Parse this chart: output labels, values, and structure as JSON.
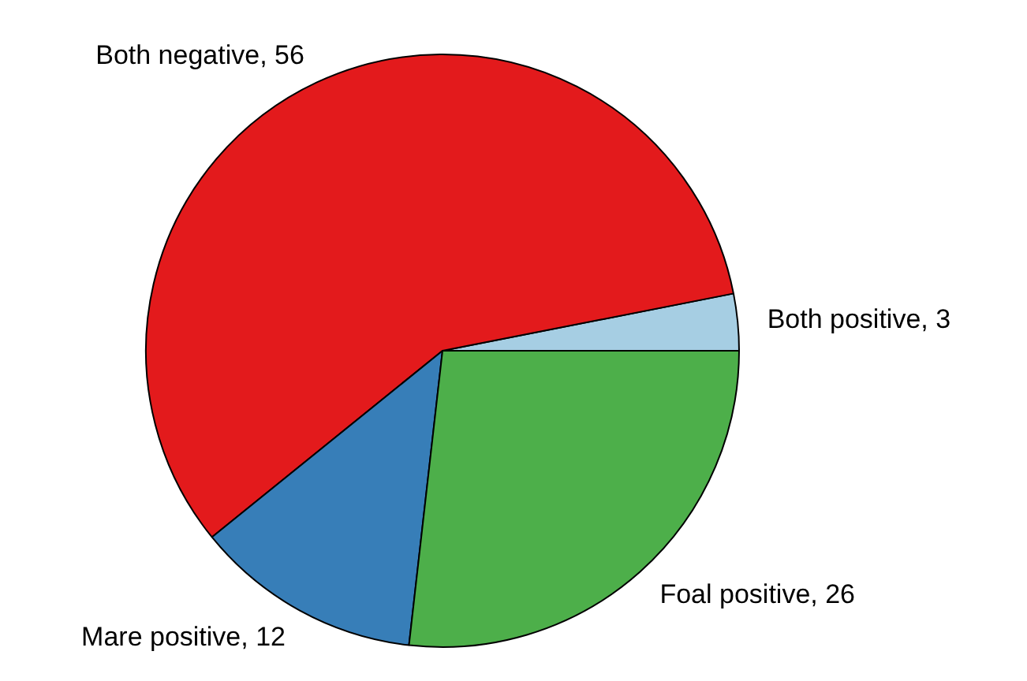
{
  "chart_data": {
    "type": "pie",
    "categories": [
      "Both positive, 3",
      "Both negative, 56",
      "Mare positive, 12",
      "Foal positive, 26"
    ],
    "values": [
      3,
      56,
      12,
      26
    ],
    "colors": [
      "#a6cee3",
      "#e31a1c",
      "#377eb8",
      "#4daf4a"
    ]
  }
}
